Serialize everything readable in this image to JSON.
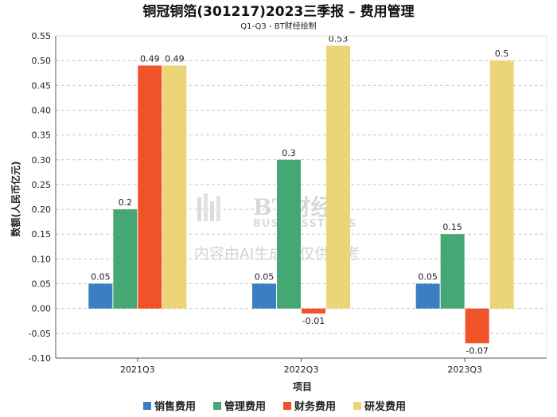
{
  "chart_data": {
    "type": "bar",
    "title": "铜冠铜箔(301217)2023三季报 – 费用管理",
    "subtitle": "Q1-Q3 - BT财经绘制",
    "xlabel": "项目",
    "ylabel": "数额(人民币亿元)",
    "categories": [
      "2021Q3",
      "2022Q3",
      "2023Q3"
    ],
    "ylim": [
      -0.1,
      0.55
    ],
    "yticks": [
      "-0.10",
      "-0.05",
      "0.00",
      "0.05",
      "0.10",
      "0.15",
      "0.20",
      "0.25",
      "0.30",
      "0.35",
      "0.40",
      "0.45",
      "0.50",
      "0.55"
    ],
    "grid": true,
    "legend_position": "bottom",
    "series": [
      {
        "name": "销售费用",
        "color": "#3a7fc1",
        "values": [
          0.05,
          0.05,
          0.05
        ],
        "labels": [
          "0.05",
          "0.05",
          "0.05"
        ]
      },
      {
        "name": "管理费用",
        "color": "#45a874",
        "values": [
          0.2,
          0.3,
          0.15
        ],
        "labels": [
          "0.2",
          "0.3",
          "0.15"
        ]
      },
      {
        "name": "财务费用",
        "color": "#f0522a",
        "values": [
          0.49,
          -0.01,
          -0.07
        ],
        "labels": [
          "0.49",
          "-0.01",
          "-0.07"
        ]
      },
      {
        "name": "研发费用",
        "color": "#ecd577",
        "values": [
          0.49,
          0.53,
          0.5
        ],
        "labels": [
          "0.49",
          "0.53",
          "0.5"
        ]
      }
    ]
  },
  "watermark": {
    "brand": "BT财经",
    "brand_en": "BUSINESSTIMES",
    "notice": "内容由AI生成，仅供参考"
  }
}
